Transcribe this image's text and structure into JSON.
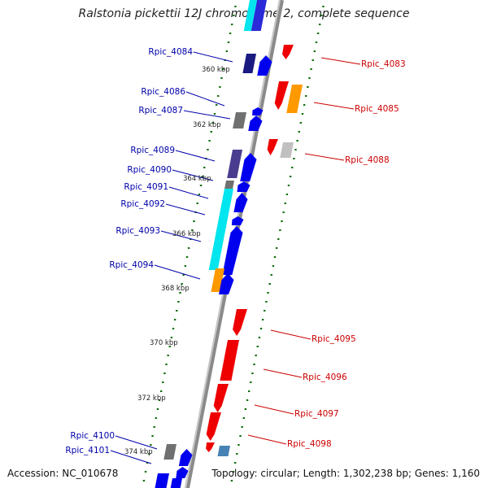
{
  "title": "Ralstonia pickettii 12J chromosome 2, complete sequence",
  "accession": "Accession: NC_010678",
  "topology": "Topology: circular; Length: 1,302,238 bp; Genes: 1,160",
  "colors": {
    "backbone": "#888888",
    "forward_gene": "#0000ee",
    "reverse_gene": "#ee0000",
    "forward_label": "#0000aa",
    "reverse_label": "#cc0000",
    "tick": "#006600",
    "cyan": "#00e5ee",
    "orange": "#ff9900",
    "navy": "#1a1a80",
    "purple": "#4a3d8f",
    "gray": "#707070",
    "steel": "#4682b4"
  },
  "kbp_labels": [
    "360 kbp",
    "362 kbp",
    "364 kbp",
    "366 kbp",
    "368 kbp",
    "370 kbp",
    "372 kbp",
    "374 kbp"
  ],
  "forward_labels": [
    "Rpic_4084",
    "Rpic_4086",
    "Rpic_4087",
    "Rpic_4089",
    "Rpic_4090",
    "Rpic_4091",
    "Rpic_4092",
    "Rpic_4093",
    "Rpic_4094",
    "Rpic_4100",
    "Rpic_4101"
  ],
  "reverse_labels": [
    "Rpic_4083",
    "Rpic_4085",
    "Rpic_4088",
    "Rpic_4095",
    "Rpic_4096",
    "Rpic_4097",
    "Rpic_4098"
  ]
}
